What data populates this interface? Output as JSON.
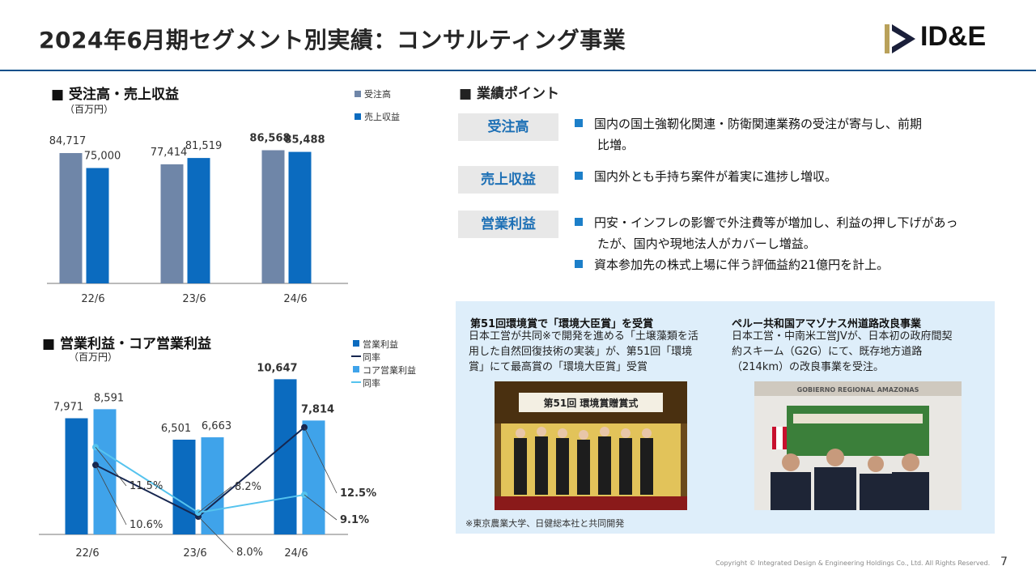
{
  "header": {
    "title": "2024年6月期セグメント別実績：コンサルティング事業",
    "logo_text": "ID&E"
  },
  "chart_data": [
    {
      "type": "bar",
      "title": "■ 受注高・売上収益",
      "unit": "（百万円）",
      "categories": [
        "22/6",
        "23/6",
        "24/6"
      ],
      "series": [
        {
          "name": "受注高",
          "values": [
            84717,
            77414,
            86568
          ],
          "labels": [
            "84,717",
            "77,414",
            "86,568"
          ],
          "color": "#6f86a8"
        },
        {
          "name": "売上収益",
          "values": [
            75000,
            81519,
            85488
          ],
          "labels": [
            "75,000",
            "81,519",
            "85,488"
          ],
          "color": "#0b6bbf"
        }
      ]
    },
    {
      "type": "bar",
      "title": "■ 営業利益・コア営業利益",
      "unit": "（百万円）",
      "categories": [
        "22/6",
        "23/6",
        "24/6"
      ],
      "series": [
        {
          "name": "営業利益",
          "values": [
            7971,
            6501,
            10647
          ],
          "labels": [
            "7,971",
            "6,501",
            "10,647"
          ],
          "color": "#0b6bbf"
        },
        {
          "name": "コア営業利益",
          "values": [
            8591,
            6663,
            7814
          ],
          "labels": [
            "8,591",
            "6,663",
            "7,814"
          ],
          "color": "#3fa3ea"
        }
      ],
      "lines": [
        {
          "name": "同率",
          "values": [
            10.6,
            8.0,
            12.5
          ],
          "labels": [
            "10.6%",
            "8.0%",
            "12.5%"
          ],
          "color": "#16264f"
        },
        {
          "name": "同率",
          "values": [
            11.5,
            8.2,
            9.1
          ],
          "labels": [
            "11.5%",
            "8.2%",
            "9.1%"
          ],
          "color": "#55c3ee"
        }
      ]
    }
  ],
  "points": {
    "heading": "■ 業績ポイント",
    "items": [
      {
        "key": "受注高",
        "lines": [
          "国内の国土強靭化関連・防衛関連業務の受注が寄与し、前期",
          "比増。"
        ]
      },
      {
        "key": "売上収益",
        "lines": [
          "国内外とも手持ち案件が着実に進捗し増収。"
        ]
      },
      {
        "key": "営業利益",
        "lines": [
          "円安・インフレの影響で外注費等が増加し、利益の押し下げがあっ",
          "たが、国内や現地法人がカバーし増益。",
          "資本参加先の株式上場に伴う評価益約21億円を計上。"
        ]
      }
    ]
  },
  "panel": {
    "left_title": "第51回環境賞で「環境大臣賞」を受賞",
    "left_body": [
      "日本工営が共同※で開発を進める「土壌藻類を活",
      "用した自然回復技術の実装」が、第51回「環境",
      "賞」にて最高賞の「環境大臣賞」受賞"
    ],
    "right_title": "ペルー共和国アマゾナス州道路改良事業",
    "right_body": [
      "日本工営・中南米工営JVが、日本初の政府間契",
      "約スキーム（G2G）にて、既存地方道路",
      "（214km）の改良事業を受注。"
    ],
    "photo_left_banner": "第51回 環境賞贈賞式",
    "photo_right_banner": "GOBIERNO REGIONAL AMAZONAS",
    "note": "※東京農業大学、日健総本社と共同開発"
  },
  "footer": {
    "copyright": "Copyright © Integrated Design & Engineering Holdings Co., Ltd.  All Rights Reserved.",
    "page": "7"
  }
}
